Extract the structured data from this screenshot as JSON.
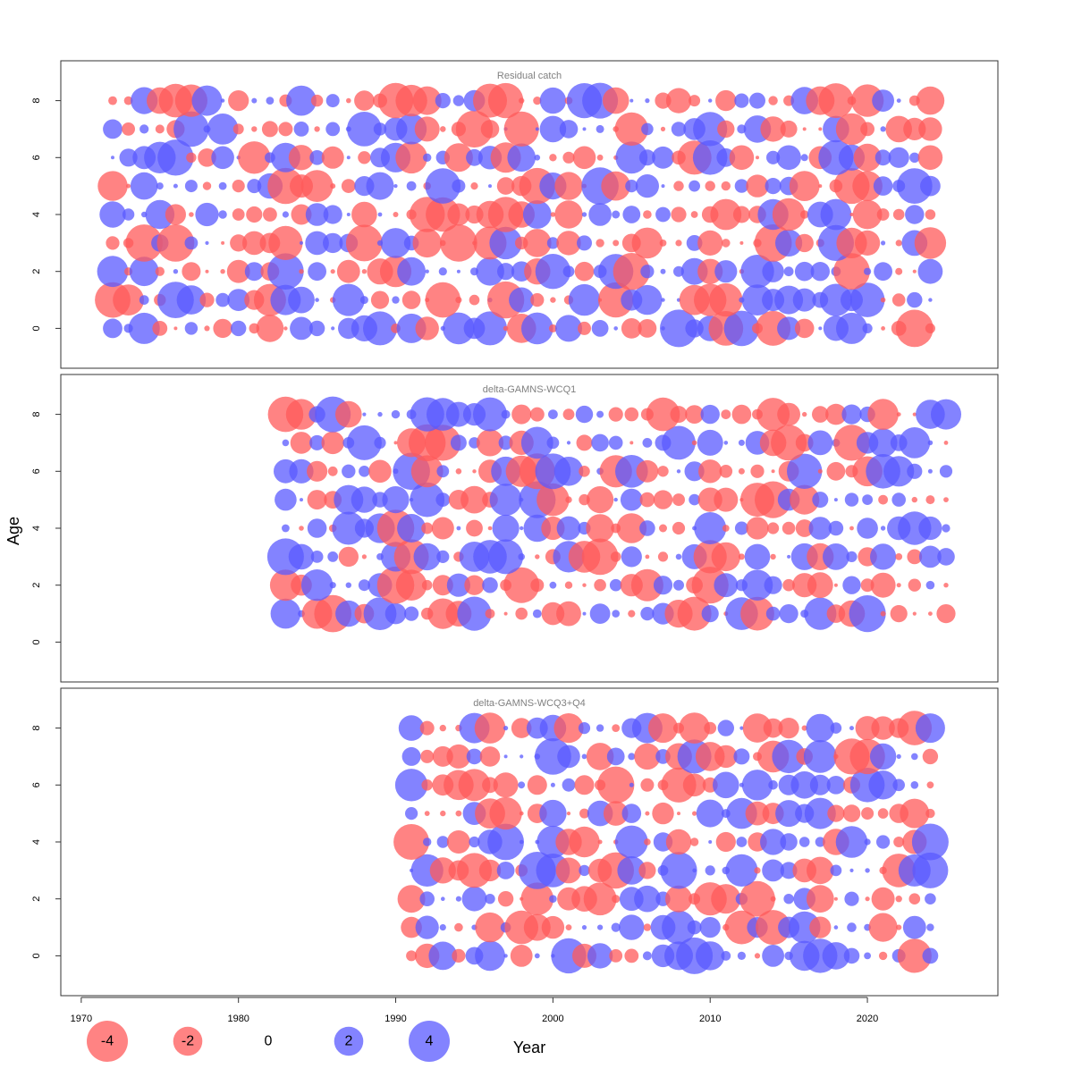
{
  "chart_data": {
    "type": "scatter",
    "subtype": "bubble",
    "xlabel": "Year",
    "ylabel": "Age",
    "xlim": [
      1968.7,
      2028.3
    ],
    "ylim": [
      -1.4,
      9.4
    ],
    "x_ticks": [
      1970,
      1980,
      1990,
      2000,
      2010,
      2020
    ],
    "y_ticks": [
      0,
      2,
      4,
      6,
      8
    ],
    "colors": {
      "negative": "#ff5a5a",
      "positive": "#5a5aff"
    },
    "legend": {
      "placement": "bottom-left",
      "items": [
        {
          "label": "-4",
          "value": -4
        },
        {
          "label": "-2",
          "value": -2
        },
        {
          "label": "0",
          "value": 0
        },
        {
          "label": "2",
          "value": 2
        },
        {
          "label": "4",
          "value": 4
        }
      ]
    },
    "panels": [
      {
        "title": "Residual catch",
        "first_year": 1972,
        "last_year": 2024,
        "ages": [
          0,
          1,
          2,
          3,
          4,
          5,
          6,
          7,
          8
        ]
      },
      {
        "title": "delta-GAMNS-WCQ1",
        "first_year": 1983,
        "last_year": 2025,
        "ages": [
          1,
          2,
          3,
          4,
          5,
          6,
          7,
          8
        ]
      },
      {
        "title": "delta-GAMNS-WCQ3+Q4",
        "first_year": 1991,
        "last_year": 2024,
        "ages": [
          0,
          1,
          2,
          3,
          4,
          5,
          6,
          7,
          8
        ]
      }
    ]
  }
}
